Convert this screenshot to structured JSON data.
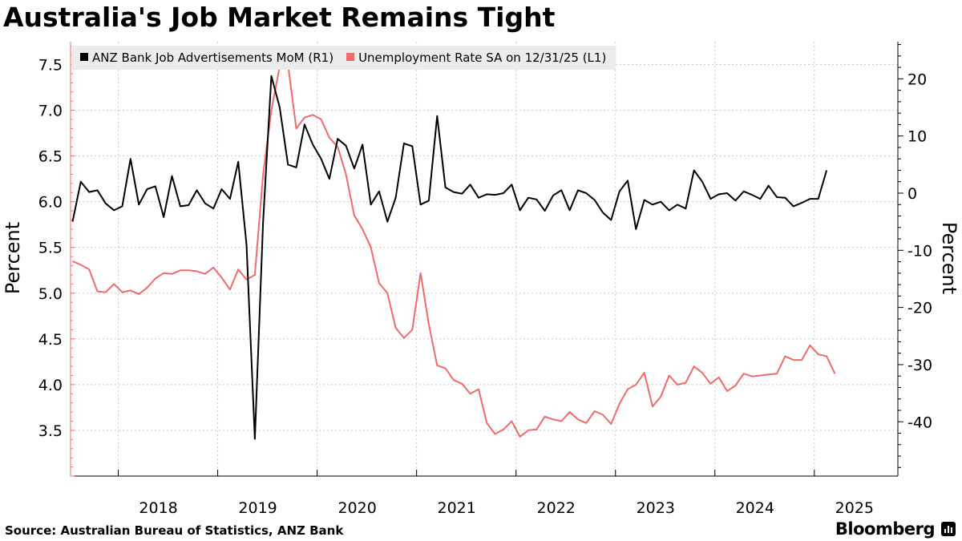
{
  "title": "Australia's Job Market Remains Tight",
  "source": "Source: Australian Bureau of Statistics, ANZ Bank",
  "brand": "Bloomberg",
  "chart_data": {
    "type": "line",
    "x_tick_labels": [
      "2018",
      "2019",
      "2020",
      "2021",
      "2022",
      "2023",
      "2024",
      "2025"
    ],
    "left_axis": {
      "label": "Percent",
      "ylim": [
        3.0,
        7.75
      ],
      "ticks": [
        "3.5",
        "4.0",
        "4.5",
        "5.0",
        "5.5",
        "6.0",
        "6.5",
        "7.0",
        "7.5"
      ]
    },
    "right_axis": {
      "label": "Percent",
      "ylim": [
        -49.5,
        26.5
      ],
      "ticks": [
        "20",
        "10",
        "0",
        "-10",
        "-20",
        "-30",
        "-40"
      ]
    },
    "x_range": [
      2017.52,
      2025.84
    ],
    "grid": true,
    "legend_position": "top-left",
    "series": [
      {
        "name": "ANZ Bank Job Advertisements MoM (R1)",
        "axis": "right",
        "color": "#000000",
        "start": 2017.54,
        "step": 0.08333,
        "values": [
          -5.0,
          2.0,
          0.2,
          0.5,
          -1.8,
          -3.0,
          -2.3,
          6.0,
          -2.0,
          0.7,
          1.2,
          -4.2,
          3.0,
          -2.3,
          -2.1,
          0.5,
          -1.8,
          -2.7,
          0.7,
          -1.0,
          5.5,
          -9.0,
          -43.0,
          -5.0,
          20.5,
          15.0,
          5.0,
          4.5,
          12.0,
          8.5,
          6.0,
          2.5,
          9.5,
          8.3,
          4.3,
          8.5,
          -2.0,
          0.3,
          -5.0,
          -0.8,
          8.7,
          8.2,
          -2.0,
          -1.3,
          13.5,
          1.0,
          0.2,
          -0.1,
          1.5,
          -0.8,
          -0.2,
          -0.3,
          0.0,
          1.5,
          -3.0,
          -0.8,
          -1.1,
          -3.1,
          -0.4,
          0.5,
          -3.0,
          0.5,
          0.0,
          -1.2,
          -3.4,
          -4.7,
          0.3,
          2.2,
          -6.3,
          -1.2,
          -2.0,
          -1.5,
          -3.0,
          -2.0,
          -2.7,
          4.0,
          2.0,
          -1.0,
          -0.2,
          0.0,
          -1.3,
          0.3,
          -0.3,
          -1.0,
          1.3,
          -0.7,
          -0.8,
          -2.3,
          -1.7,
          -1.0,
          -1.0,
          4.0
        ]
      },
      {
        "name": "Unemployment Rate SA on 12/31/25 (L1)",
        "axis": "left",
        "color": "#f06b6b",
        "start": 2017.54,
        "step": 0.08333,
        "values": [
          5.35,
          5.31,
          5.26,
          5.02,
          5.01,
          5.1,
          5.01,
          5.03,
          4.99,
          5.06,
          5.16,
          5.22,
          5.21,
          5.25,
          5.25,
          5.24,
          5.21,
          5.28,
          5.17,
          5.04,
          5.26,
          5.15,
          5.2,
          6.3,
          7.0,
          7.48,
          7.5,
          6.8,
          6.92,
          6.95,
          6.9,
          6.7,
          6.6,
          6.3,
          5.85,
          5.7,
          5.5,
          5.11,
          5.0,
          4.62,
          4.51,
          4.6,
          5.22,
          4.66,
          4.21,
          4.18,
          4.05,
          4.01,
          3.9,
          3.95,
          3.58,
          3.46,
          3.51,
          3.6,
          3.43,
          3.5,
          3.51,
          3.65,
          3.62,
          3.6,
          3.7,
          3.62,
          3.58,
          3.71,
          3.67,
          3.57,
          3.79,
          3.95,
          4.0,
          4.13,
          3.76,
          3.87,
          4.1,
          4.0,
          4.02,
          4.2,
          4.13,
          4.01,
          4.08,
          3.93,
          3.99,
          4.12,
          4.09,
          4.1,
          4.11,
          4.12,
          4.31,
          4.27,
          4.27,
          4.43,
          4.33,
          4.31,
          4.12
        ]
      }
    ]
  }
}
